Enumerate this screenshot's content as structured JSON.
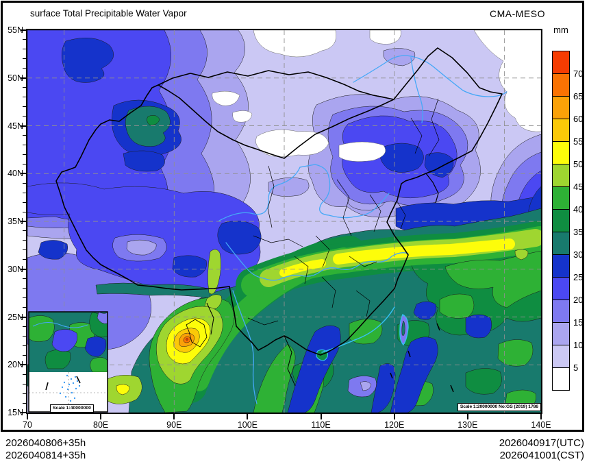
{
  "header": {
    "title": "surface Total Precipitable Water Vapor",
    "model": "CMA-MESO"
  },
  "colorbar": {
    "unit": "mm",
    "levels": [
      {
        "color": "#f53c02",
        "label": "70"
      },
      {
        "color": "#fa7203",
        "label": "65"
      },
      {
        "color": "#fba108",
        "label": "60"
      },
      {
        "color": "#fbc908",
        "label": "55"
      },
      {
        "color": "#fdfd0a",
        "label": "50"
      },
      {
        "color": "#9fd630",
        "label": "45"
      },
      {
        "color": "#2eb135",
        "label": "40"
      },
      {
        "color": "#0f8d41",
        "label": "35"
      },
      {
        "color": "#187a6d",
        "label": "30"
      },
      {
        "color": "#1533cb",
        "label": "25"
      },
      {
        "color": "#4b48f2",
        "label": "20"
      },
      {
        "color": "#7e79f0",
        "label": "15"
      },
      {
        "color": "#aaa5ef",
        "label": "10"
      },
      {
        "color": "#cbc8f4",
        "label": "5"
      },
      {
        "color": "#ffffff",
        "label": ""
      }
    ]
  },
  "axes": {
    "lat": [
      "55N",
      "50N",
      "45N",
      "40N",
      "35N",
      "30N",
      "25N",
      "20N",
      "15N"
    ],
    "lon": [
      "70",
      "80E",
      "90E",
      "100E",
      "110E",
      "120E",
      "130E",
      "140E"
    ]
  },
  "badges": {
    "map_scale": "Scale 1:20000000 No:GS (2019) 1786",
    "inset_scale": "Scale 1:40000000"
  },
  "footer": {
    "init_utc": "2026040806+35h",
    "init_cst": "2026040814+35h",
    "valid_utc": "2026040917(UTC)",
    "valid_cst": "2026041001(CST)"
  },
  "map_colors": {
    "river": "#45a8f7",
    "coast_highlight": "#35c0f0",
    "border": "#000000",
    "grid": "#8f8f8f"
  }
}
